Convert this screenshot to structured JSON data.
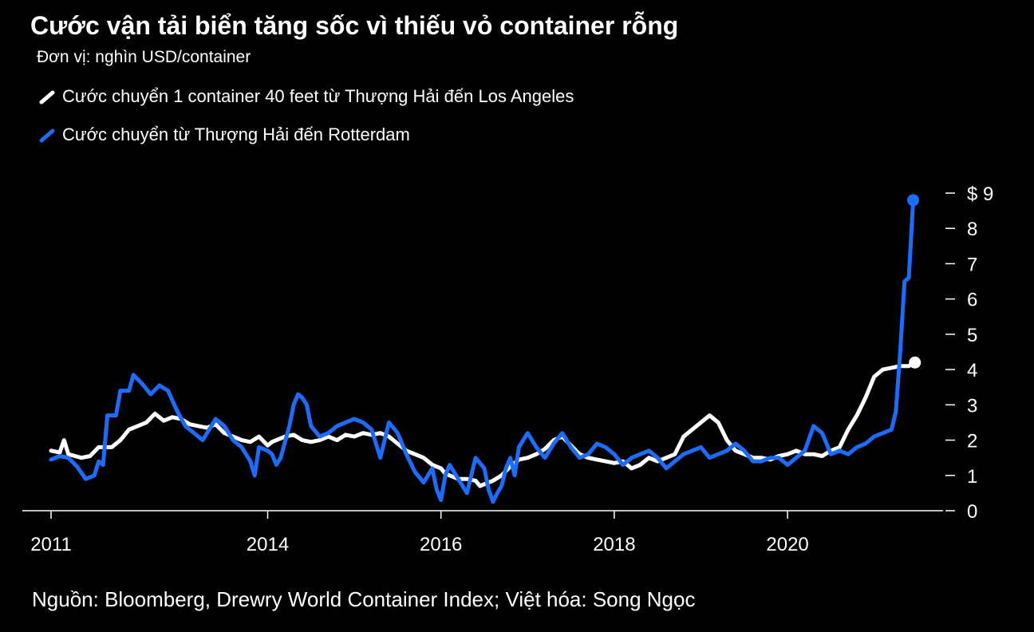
{
  "title": "Cước vận tải biển tăng sốc vì thiếu vỏ container rỗng",
  "subtitle": "Đơn vị: nghìn USD/container",
  "source": "Nguồn: Bloomberg, Drewry World Container Index; Việt hóa: Song Ngọc",
  "colors": {
    "background": "#000000",
    "la": "#ffffff",
    "rotterdam": "#1a6dff",
    "axis": "#ffffff"
  },
  "chart_data": {
    "type": "line",
    "xlabel": "",
    "ylabel": "",
    "xlim": [
      2011.0,
      2021.0
    ],
    "ylim": [
      0,
      9
    ],
    "x_ticks": [
      {
        "value": 2011.0,
        "label": "2011"
      },
      {
        "value": 2013.5,
        "label": "2014"
      },
      {
        "value": 2015.5,
        "label": "2016"
      },
      {
        "value": 2017.5,
        "label": "2018"
      },
      {
        "value": 2019.5,
        "label": "2020"
      }
    ],
    "y_ticks": [
      {
        "value": 9,
        "label": "$ 9"
      },
      {
        "value": 8,
        "label": "8"
      },
      {
        "value": 7,
        "label": "7"
      },
      {
        "value": 6,
        "label": "6"
      },
      {
        "value": 5,
        "label": "5"
      },
      {
        "value": 4,
        "label": "4"
      },
      {
        "value": 3,
        "label": "3"
      },
      {
        "value": 2,
        "label": "2"
      },
      {
        "value": 1,
        "label": "1"
      },
      {
        "value": 0,
        "label": "0"
      }
    ],
    "grid": false,
    "legend_position": "top-left",
    "series": [
      {
        "name": "Cước chuyển 1 container 40 feet từ Thượng Hải đến Los Angeles",
        "color": "#ffffff",
        "points": [
          [
            2011.0,
            1.7
          ],
          [
            2011.1,
            1.65
          ],
          [
            2011.15,
            2.0
          ],
          [
            2011.2,
            1.6
          ],
          [
            2011.35,
            1.5
          ],
          [
            2011.45,
            1.55
          ],
          [
            2011.55,
            1.8
          ],
          [
            2011.7,
            1.8
          ],
          [
            2011.8,
            2.0
          ],
          [
            2011.9,
            2.3
          ],
          [
            2012.0,
            2.4
          ],
          [
            2012.1,
            2.5
          ],
          [
            2012.2,
            2.75
          ],
          [
            2012.3,
            2.55
          ],
          [
            2012.4,
            2.65
          ],
          [
            2012.5,
            2.6
          ],
          [
            2012.6,
            2.45
          ],
          [
            2012.7,
            2.4
          ],
          [
            2012.8,
            2.35
          ],
          [
            2012.9,
            2.45
          ],
          [
            2013.0,
            2.2
          ],
          [
            2013.1,
            2.1
          ],
          [
            2013.2,
            2.0
          ],
          [
            2013.3,
            1.95
          ],
          [
            2013.4,
            2.1
          ],
          [
            2013.5,
            1.85
          ],
          [
            2013.55,
            1.95
          ],
          [
            2013.6,
            2.0
          ],
          [
            2013.7,
            2.1
          ],
          [
            2013.8,
            2.15
          ],
          [
            2013.9,
            2.0
          ],
          [
            2014.0,
            1.95
          ],
          [
            2014.1,
            2.0
          ],
          [
            2014.2,
            2.1
          ],
          [
            2014.3,
            2.0
          ],
          [
            2014.4,
            2.15
          ],
          [
            2014.5,
            2.1
          ],
          [
            2014.6,
            2.2
          ],
          [
            2014.7,
            2.15
          ],
          [
            2014.8,
            2.2
          ],
          [
            2014.9,
            2.1
          ],
          [
            2015.0,
            1.9
          ],
          [
            2015.1,
            1.7
          ],
          [
            2015.2,
            1.6
          ],
          [
            2015.3,
            1.5
          ],
          [
            2015.35,
            1.4
          ],
          [
            2015.4,
            1.3
          ],
          [
            2015.5,
            1.2
          ],
          [
            2015.55,
            1.05
          ],
          [
            2015.6,
            1.0
          ],
          [
            2015.7,
            0.9
          ],
          [
            2015.8,
            0.9
          ],
          [
            2015.9,
            0.85
          ],
          [
            2015.95,
            0.7
          ],
          [
            2016.0,
            0.75
          ],
          [
            2016.1,
            0.85
          ],
          [
            2016.2,
            1.0
          ],
          [
            2016.3,
            1.25
          ],
          [
            2016.4,
            1.45
          ],
          [
            2016.5,
            1.5
          ],
          [
            2016.6,
            1.6
          ],
          [
            2016.7,
            1.75
          ],
          [
            2016.8,
            2.0
          ],
          [
            2016.9,
            2.1
          ],
          [
            2017.0,
            1.85
          ],
          [
            2017.1,
            1.6
          ],
          [
            2017.2,
            1.5
          ],
          [
            2017.3,
            1.45
          ],
          [
            2017.4,
            1.4
          ],
          [
            2017.5,
            1.35
          ],
          [
            2017.6,
            1.4
          ],
          [
            2017.7,
            1.2
          ],
          [
            2017.8,
            1.3
          ],
          [
            2017.9,
            1.5
          ],
          [
            2018.0,
            1.4
          ],
          [
            2018.1,
            1.5
          ],
          [
            2018.2,
            1.6
          ],
          [
            2018.3,
            2.1
          ],
          [
            2018.4,
            2.3
          ],
          [
            2018.5,
            2.5
          ],
          [
            2018.6,
            2.7
          ],
          [
            2018.7,
            2.5
          ],
          [
            2018.8,
            2.0
          ],
          [
            2018.9,
            1.7
          ],
          [
            2019.0,
            1.6
          ],
          [
            2019.1,
            1.5
          ],
          [
            2019.2,
            1.5
          ],
          [
            2019.3,
            1.45
          ],
          [
            2019.4,
            1.55
          ],
          [
            2019.5,
            1.6
          ],
          [
            2019.6,
            1.7
          ],
          [
            2019.7,
            1.6
          ],
          [
            2019.8,
            1.6
          ],
          [
            2019.9,
            1.55
          ],
          [
            2020.0,
            1.7
          ],
          [
            2020.1,
            1.8
          ],
          [
            2020.2,
            2.3
          ],
          [
            2020.3,
            2.7
          ],
          [
            2020.4,
            3.2
          ],
          [
            2020.5,
            3.8
          ],
          [
            2020.6,
            4.0
          ],
          [
            2020.7,
            4.05
          ],
          [
            2020.8,
            4.1
          ],
          [
            2020.9,
            4.1
          ],
          [
            2020.97,
            4.2
          ]
        ]
      },
      {
        "name": "Cước chuyển từ Thượng Hải đến Rotterdam",
        "color": "#1a6dff",
        "points": [
          [
            2011.0,
            1.45
          ],
          [
            2011.1,
            1.55
          ],
          [
            2011.2,
            1.5
          ],
          [
            2011.3,
            1.25
          ],
          [
            2011.4,
            0.9
          ],
          [
            2011.5,
            1.0
          ],
          [
            2011.55,
            1.4
          ],
          [
            2011.6,
            1.3
          ],
          [
            2011.65,
            2.7
          ],
          [
            2011.75,
            2.7
          ],
          [
            2011.8,
            3.4
          ],
          [
            2011.9,
            3.4
          ],
          [
            2011.95,
            3.85
          ],
          [
            2012.05,
            3.6
          ],
          [
            2012.15,
            3.3
          ],
          [
            2012.25,
            3.55
          ],
          [
            2012.35,
            3.4
          ],
          [
            2012.45,
            2.85
          ],
          [
            2012.55,
            2.4
          ],
          [
            2012.65,
            2.2
          ],
          [
            2012.75,
            2.0
          ],
          [
            2012.85,
            2.4
          ],
          [
            2012.9,
            2.6
          ],
          [
            2013.0,
            2.4
          ],
          [
            2013.1,
            2.0
          ],
          [
            2013.2,
            1.8
          ],
          [
            2013.3,
            1.4
          ],
          [
            2013.35,
            1.0
          ],
          [
            2013.4,
            1.8
          ],
          [
            2013.5,
            1.7
          ],
          [
            2013.55,
            1.6
          ],
          [
            2013.6,
            1.3
          ],
          [
            2013.65,
            1.5
          ],
          [
            2013.75,
            2.4
          ],
          [
            2013.8,
            3.0
          ],
          [
            2013.85,
            3.3
          ],
          [
            2013.9,
            3.2
          ],
          [
            2013.95,
            3.0
          ],
          [
            2014.0,
            2.4
          ],
          [
            2014.1,
            2.1
          ],
          [
            2014.2,
            2.2
          ],
          [
            2014.3,
            2.4
          ],
          [
            2014.4,
            2.5
          ],
          [
            2014.5,
            2.6
          ],
          [
            2014.6,
            2.5
          ],
          [
            2014.7,
            2.3
          ],
          [
            2014.8,
            1.5
          ],
          [
            2014.9,
            2.5
          ],
          [
            2015.0,
            2.2
          ],
          [
            2015.1,
            1.6
          ],
          [
            2015.2,
            1.1
          ],
          [
            2015.3,
            0.8
          ],
          [
            2015.4,
            1.2
          ],
          [
            2015.45,
            0.6
          ],
          [
            2015.5,
            0.3
          ],
          [
            2015.55,
            1.0
          ],
          [
            2015.6,
            1.3
          ],
          [
            2015.7,
            0.9
          ],
          [
            2015.8,
            0.5
          ],
          [
            2015.9,
            1.5
          ],
          [
            2016.0,
            1.2
          ],
          [
            2016.05,
            0.6
          ],
          [
            2016.1,
            0.25
          ],
          [
            2016.15,
            0.5
          ],
          [
            2016.2,
            0.7
          ],
          [
            2016.25,
            1.2
          ],
          [
            2016.3,
            1.5
          ],
          [
            2016.35,
            1.0
          ],
          [
            2016.4,
            1.8
          ],
          [
            2016.5,
            2.2
          ],
          [
            2016.6,
            1.8
          ],
          [
            2016.7,
            1.5
          ],
          [
            2016.8,
            1.9
          ],
          [
            2016.9,
            2.2
          ],
          [
            2017.0,
            1.8
          ],
          [
            2017.1,
            1.5
          ],
          [
            2017.2,
            1.6
          ],
          [
            2017.3,
            1.9
          ],
          [
            2017.4,
            1.8
          ],
          [
            2017.5,
            1.6
          ],
          [
            2017.6,
            1.3
          ],
          [
            2017.7,
            1.5
          ],
          [
            2017.8,
            1.6
          ],
          [
            2017.9,
            1.7
          ],
          [
            2018.0,
            1.5
          ],
          [
            2018.1,
            1.2
          ],
          [
            2018.2,
            1.4
          ],
          [
            2018.3,
            1.6
          ],
          [
            2018.4,
            1.7
          ],
          [
            2018.5,
            1.8
          ],
          [
            2018.6,
            1.5
          ],
          [
            2018.7,
            1.6
          ],
          [
            2018.8,
            1.7
          ],
          [
            2018.9,
            1.9
          ],
          [
            2019.0,
            1.7
          ],
          [
            2019.1,
            1.4
          ],
          [
            2019.2,
            1.4
          ],
          [
            2019.3,
            1.5
          ],
          [
            2019.4,
            1.5
          ],
          [
            2019.5,
            1.3
          ],
          [
            2019.6,
            1.5
          ],
          [
            2019.7,
            1.7
          ],
          [
            2019.8,
            2.4
          ],
          [
            2019.9,
            2.2
          ],
          [
            2020.0,
            1.6
          ],
          [
            2020.1,
            1.7
          ],
          [
            2020.2,
            1.6
          ],
          [
            2020.3,
            1.8
          ],
          [
            2020.4,
            1.9
          ],
          [
            2020.5,
            2.1
          ],
          [
            2020.6,
            2.2
          ],
          [
            2020.7,
            2.3
          ],
          [
            2020.75,
            2.8
          ],
          [
            2020.8,
            4.5
          ],
          [
            2020.85,
            6.5
          ],
          [
            2020.9,
            6.6
          ],
          [
            2020.95,
            8.8
          ]
        ]
      }
    ]
  }
}
